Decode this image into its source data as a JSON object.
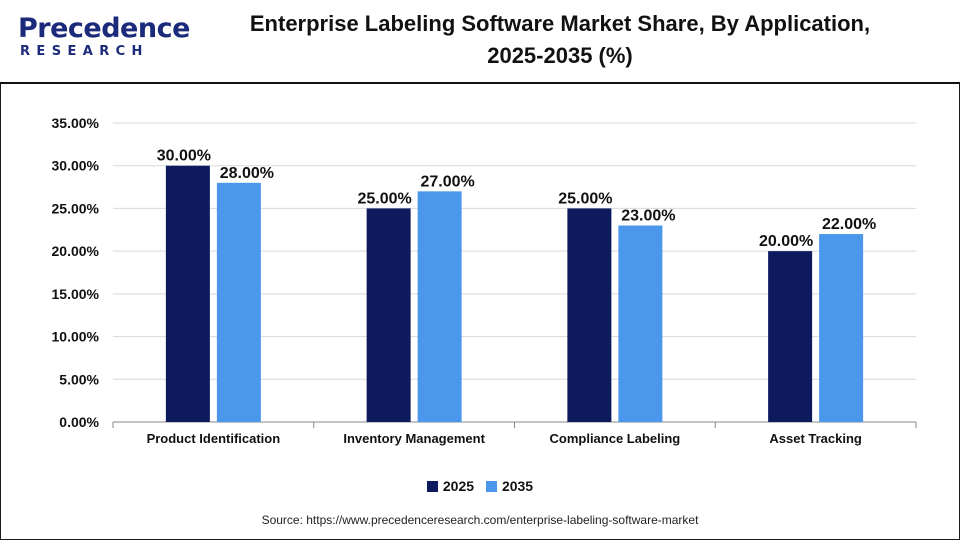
{
  "brand": {
    "logo_main": "Precedence",
    "logo_sub": "RESEARCH"
  },
  "title_line1": "Enterprise Labeling Software Market Share, By Application,",
  "title_line2": "2025-2035 (%)",
  "source": "Source: https://www.precedenceresearch.com/enterprise-labeling-software-market",
  "colors": {
    "series_2025": "#0d1a5e",
    "series_2035": "#4a97ec",
    "brand": "#1b2a7a",
    "grid": "#d9d9d9"
  },
  "chart_data": {
    "type": "bar",
    "title": "Enterprise Labeling Software Market Share, By Application, 2025-2035 (%)",
    "categories": [
      "Product Identification",
      "Inventory Management",
      "Compliance Labeling",
      "Asset Tracking"
    ],
    "series": [
      {
        "name": "2025",
        "values": [
          30,
          25,
          25,
          20
        ],
        "labels": [
          "30.00%",
          "25.00%",
          "25.00%",
          "20.00%"
        ]
      },
      {
        "name": "2035",
        "values": [
          28,
          27,
          23,
          22
        ],
        "labels": [
          "28.00%",
          "27.00%",
          "23.00%",
          "22.00%"
        ]
      }
    ],
    "ylim": [
      0,
      35
    ],
    "yticks": [
      0,
      5,
      10,
      15,
      20,
      25,
      30,
      35
    ],
    "ytick_labels": [
      "0.00%",
      "5.00%",
      "10.00%",
      "15.00%",
      "20.00%",
      "25.00%",
      "30.00%",
      "35.00%"
    ],
    "xlabel": "",
    "ylabel": "",
    "grid": true,
    "legend": "bottom-center"
  }
}
